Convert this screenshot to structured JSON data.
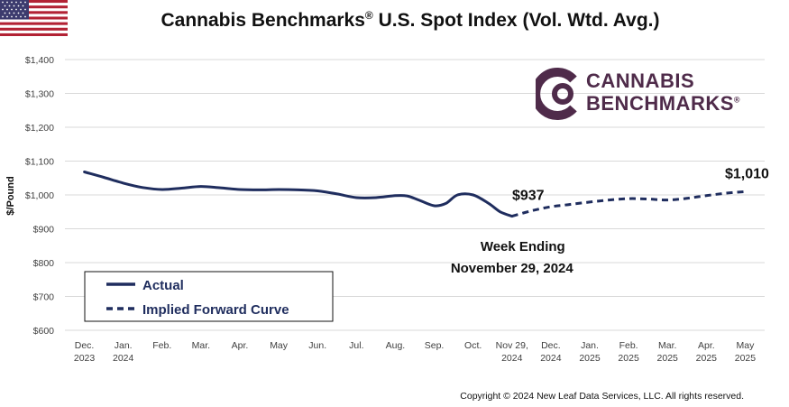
{
  "flag_icon": "us-flag-icon",
  "title": "Cannabis Benchmarks",
  "title_reg": "®",
  "title_rest": " U.S. Spot Index (Vol. Wtd. Avg.)",
  "logo": {
    "line1": "CANNABIS",
    "line2": "BENCHMARKS",
    "reg": "®",
    "color": "#4f2b4a"
  },
  "copyright": "Copyright © 2024 New Leaf Data Services, LLC. All rights reserved.",
  "colors": {
    "line": "#1f2d5e",
    "grid": "#d9d9d9",
    "text": "#404040"
  },
  "chart_data": {
    "type": "line",
    "title": "Cannabis Benchmarks® U.S. Spot Index (Vol. Wtd. Avg.)",
    "ylabel": "$/Pound",
    "ylim": [
      600,
      1400
    ],
    "yticks": [
      600,
      700,
      800,
      900,
      1000,
      1100,
      1200,
      1300,
      1400
    ],
    "ytick_labels": [
      "$600",
      "$700",
      "$800",
      "$900",
      "$1,000",
      "$1,100",
      "$1,200",
      "$1,300",
      "$1,400"
    ],
    "grid": true,
    "categories": [
      [
        "Dec.",
        "2023"
      ],
      [
        "Jan.",
        "2024"
      ],
      [
        "Feb."
      ],
      [
        "Mar."
      ],
      [
        "Apr."
      ],
      [
        "May"
      ],
      [
        "Jun."
      ],
      [
        "Jul."
      ],
      [
        "Aug."
      ],
      [
        "Sep."
      ],
      [
        "Oct."
      ],
      [
        "Nov 29,",
        "2024"
      ],
      [
        "Dec.",
        "2024"
      ],
      [
        "Jan.",
        "2025"
      ],
      [
        "Feb.",
        "2025"
      ],
      [
        "Mar.",
        "2025"
      ],
      [
        "Apr.",
        "2025"
      ],
      [
        "May",
        "2025"
      ]
    ],
    "series": [
      {
        "name": "Actual",
        "style": "solid",
        "x": [
          0,
          0.5,
          1,
          1.5,
          2,
          2.5,
          3,
          3.5,
          4,
          4.5,
          5,
          5.5,
          6,
          6.5,
          7,
          7.5,
          8,
          8.3,
          8.6,
          9,
          9.3,
          9.6,
          10,
          10.4,
          10.7,
          11
        ],
        "values": [
          1068,
          1052,
          1035,
          1022,
          1016,
          1020,
          1025,
          1021,
          1016,
          1015,
          1016,
          1015,
          1012,
          1003,
          992,
          992,
          998,
          997,
          985,
          968,
          975,
          1000,
          1000,
          975,
          950,
          937
        ]
      },
      {
        "name": "Implied Forward Curve",
        "style": "dashed",
        "x": [
          11,
          11.5,
          12,
          12.5,
          13,
          13.5,
          14,
          14.5,
          15,
          15.5,
          16,
          16.5,
          17
        ],
        "values": [
          937,
          953,
          965,
          972,
          979,
          985,
          989,
          988,
          985,
          990,
          998,
          1005,
          1010
        ]
      }
    ],
    "annotations": [
      {
        "text": "$937",
        "x": 11,
        "y": 937
      },
      {
        "text": "$1,010",
        "x": 17,
        "y": 1010
      },
      {
        "text": "Week Ending",
        "x": 11,
        "y": 900
      },
      {
        "text": "November 29, 2024",
        "x": 11,
        "y": 900
      }
    ],
    "legend": {
      "placement": "bottom-left",
      "entries": [
        "Actual",
        "Implied Forward Curve"
      ]
    }
  }
}
